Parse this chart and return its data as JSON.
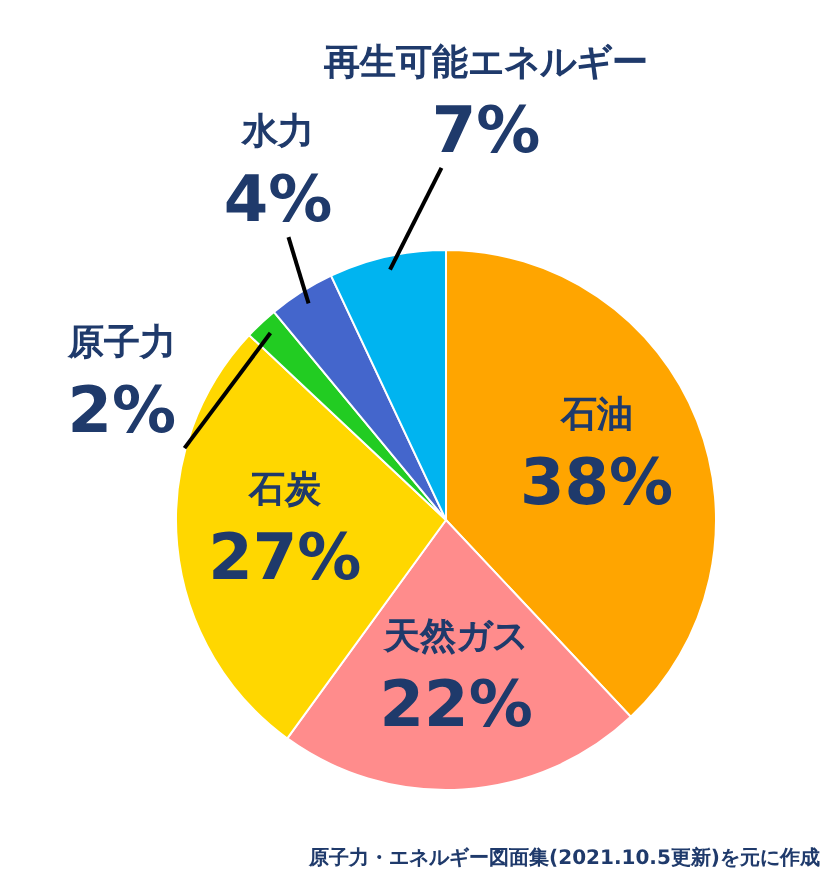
{
  "chart_data": {
    "type": "pie",
    "categories": [
      "石油",
      "天然ガス",
      "石炭",
      "原子力",
      "水力",
      "再生可能エネルギー"
    ],
    "values": [
      38,
      22,
      27,
      2,
      4,
      7
    ],
    "value_labels": [
      "38%",
      "22%",
      "27%",
      "2%",
      "4%",
      "7%"
    ],
    "colors": [
      "#ffa500",
      "#ff8c8c",
      "#ffd700",
      "#22cc22",
      "#4466cc",
      "#00b4f0"
    ],
    "legend": false,
    "annotations": [
      "原子力・エネルギー図面集(2021.10.5更新)を元に作成"
    ]
  }
}
